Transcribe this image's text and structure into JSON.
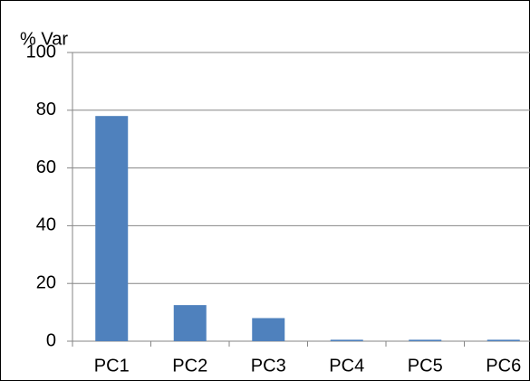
{
  "chart_data": {
    "type": "bar",
    "y_label": "% Var",
    "categories": [
      "PC1",
      "PC2",
      "PC3",
      "PC4",
      "PC5",
      "PC6"
    ],
    "values": [
      78,
      12.5,
      8,
      0.5,
      0.5,
      0.5
    ],
    "color": "#4f81bd",
    "ylim": [
      0,
      100
    ],
    "yticks": [
      0,
      20,
      40,
      60,
      80,
      100
    ],
    "grid": true
  }
}
